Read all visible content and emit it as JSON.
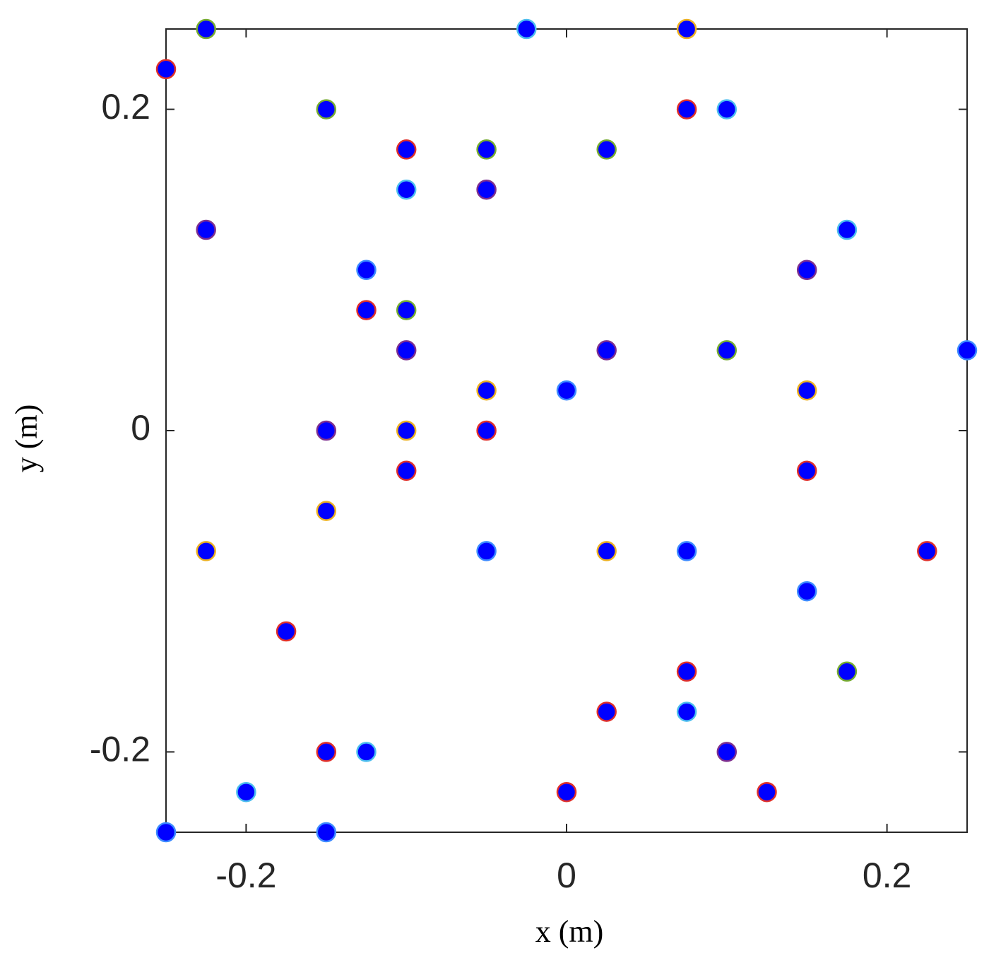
{
  "chart_data": {
    "type": "scatter",
    "xlabel": "x (m)",
    "ylabel": "y (m)",
    "xlim": [
      -0.25,
      0.25
    ],
    "ylim": [
      -0.25,
      0.25
    ],
    "xticks": [
      -0.2,
      0,
      0.2
    ],
    "yticks": [
      -0.2,
      0,
      0.2
    ],
    "marker_fill": "#0000ff",
    "box": true,
    "series": [
      {
        "edgecolor": "#77ac30",
        "x": [
          -0.225,
          -0.15,
          -0.05,
          0.025,
          -0.1,
          0.1,
          0.175
        ],
        "values": [
          0.25,
          0.2,
          0.175,
          0.175,
          0.075,
          0.05,
          -0.15
        ]
      },
      {
        "edgecolor": "#4dbeee",
        "x": [
          -0.025,
          0.1,
          -0.1,
          0.175,
          0.075,
          -0.125,
          -0.2
        ],
        "values": [
          0.25,
          0.2,
          0.15,
          0.125,
          -0.175,
          -0.2,
          -0.225
        ]
      },
      {
        "edgecolor": "#edb120",
        "x": [
          0.075,
          -0.05,
          0.15,
          -0.1,
          -0.15,
          -0.225,
          0.025
        ],
        "values": [
          0.25,
          0.025,
          0.025,
          0,
          -0.05,
          -0.075,
          -0.075
        ]
      },
      {
        "edgecolor": "#e0302a",
        "x": [
          -0.25,
          0.075,
          -0.1,
          -0.125,
          -0.05,
          -0.1,
          0.15,
          0.225,
          -0.175,
          0.075,
          0.025,
          -0.15,
          0,
          0.125
        ],
        "values": [
          0.225,
          0.2,
          0.175,
          0.075,
          0,
          -0.025,
          -0.025,
          -0.075,
          -0.125,
          -0.15,
          -0.175,
          -0.2,
          -0.225,
          -0.225
        ]
      },
      {
        "edgecolor": "#7e2f8e",
        "x": [
          -0.05,
          -0.225,
          0.15,
          -0.1,
          0.025,
          -0.15,
          0.1
        ],
        "values": [
          0.15,
          0.125,
          0.1,
          0.05,
          0.05,
          0,
          -0.2
        ]
      },
      {
        "edgecolor": "#3d8bff",
        "x": [
          -0.125,
          0.25,
          0,
          -0.05,
          0.075,
          0.15,
          -0.25,
          -0.15
        ],
        "values": [
          0.1,
          0.05,
          0.025,
          -0.075,
          -0.075,
          -0.1,
          -0.25,
          -0.25
        ]
      }
    ]
  }
}
